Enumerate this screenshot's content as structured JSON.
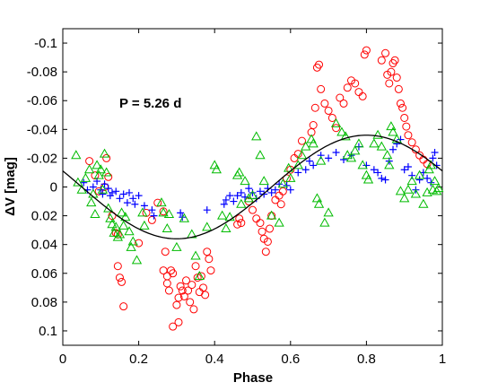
{
  "chart_data": {
    "type": "scatter",
    "xlabel": "Phase",
    "ylabel": "ΔV [mag]",
    "annotation": "P = 5.26 d",
    "xlim": [
      0,
      1
    ],
    "ylim": [
      0.11,
      -0.11
    ],
    "y_axis_inverted": true,
    "grid": false,
    "legend": "none",
    "x_ticks": [
      "0",
      "0.2",
      "0.4",
      "0.6",
      "0.8",
      "1"
    ],
    "x_tick_values": [
      0,
      0.2,
      0.4,
      0.6,
      0.8,
      1
    ],
    "y_ticks": [
      "-0.1",
      "-0.08",
      "-0.06",
      "-0.04",
      "-0.02",
      "0",
      "0.02",
      "0.04",
      "0.06",
      "0.08",
      "0.1"
    ],
    "y_tick_values": [
      -0.1,
      -0.08,
      -0.06,
      -0.04,
      -0.02,
      0,
      0.02,
      0.04,
      0.06,
      0.08,
      0.1
    ],
    "fit_curve": {
      "model": "sinusoid",
      "offset": 0,
      "amplitude": 0.036,
      "phase_of_max_brightness": 0.8,
      "color": "#000000"
    },
    "series": [
      {
        "marker": "circle",
        "color": "#ff0000",
        "points": [
          [
            0.07,
            -0.018
          ],
          [
            0.085,
            -0.008
          ],
          [
            0.095,
            0.003
          ],
          [
            0.11,
            0
          ],
          [
            0.115,
            -0.02
          ],
          [
            0.12,
            -0.007
          ],
          [
            0.13,
            0.02
          ],
          [
            0.14,
            0.032
          ],
          [
            0.145,
            0.033
          ],
          [
            0.145,
            0.055
          ],
          [
            0.15,
            0.063
          ],
          [
            0.155,
            0.066
          ],
          [
            0.16,
            0.083
          ],
          [
            0.2,
            0.039
          ],
          [
            0.22,
            0.018
          ],
          [
            0.235,
            0.023
          ],
          [
            0.25,
            0.011
          ],
          [
            0.265,
            0.017
          ],
          [
            0.265,
            0.058
          ],
          [
            0.27,
            0.045
          ],
          [
            0.275,
            0.062
          ],
          [
            0.275,
            0.067
          ],
          [
            0.28,
            0.072
          ],
          [
            0.285,
            0.058
          ],
          [
            0.29,
            0.06
          ],
          [
            0.3,
            0.082
          ],
          [
            0.305,
            0.077
          ],
          [
            0.31,
            0.069
          ],
          [
            0.315,
            0.072
          ],
          [
            0.32,
            0.076
          ],
          [
            0.325,
            0.065
          ],
          [
            0.33,
            0.072
          ],
          [
            0.335,
            0.08
          ],
          [
            0.34,
            0.068
          ],
          [
            0.345,
            0.085
          ],
          [
            0.35,
            0.055
          ],
          [
            0.355,
            0.063
          ],
          [
            0.36,
            0.073
          ],
          [
            0.365,
            0.062
          ],
          [
            0.37,
            0.07
          ],
          [
            0.375,
            0.075
          ],
          [
            0.38,
            0.045
          ],
          [
            0.385,
            0.05
          ],
          [
            0.39,
            0.058
          ],
          [
            0.305,
            0.094
          ],
          [
            0.29,
            0.097
          ],
          [
            0.46,
            0.026
          ],
          [
            0.465,
            0.022
          ],
          [
            0.47,
            0.025
          ],
          [
            0.49,
            0.01
          ],
          [
            0.5,
            0.016
          ],
          [
            0.51,
            0.022
          ],
          [
            0.52,
            0.025
          ],
          [
            0.525,
            0.031
          ],
          [
            0.53,
            0.036
          ],
          [
            0.535,
            0.045
          ],
          [
            0.54,
            0.038
          ],
          [
            0.545,
            0.029
          ],
          [
            0.55,
            0.02
          ],
          [
            0.56,
            0.009
          ],
          [
            0.57,
            0.006
          ],
          [
            0.575,
            0.012
          ],
          [
            0.58,
            0.003
          ],
          [
            0.59,
            -0.006
          ],
          [
            0.6,
            -0.012
          ],
          [
            0.61,
            -0.02
          ],
          [
            0.62,
            -0.023
          ],
          [
            0.63,
            -0.032
          ],
          [
            0.655,
            -0.038
          ],
          [
            0.66,
            -0.043
          ],
          [
            0.665,
            -0.055
          ],
          [
            0.67,
            -0.083
          ],
          [
            0.675,
            -0.085
          ],
          [
            0.68,
            -0.068
          ],
          [
            0.69,
            -0.058
          ],
          [
            0.7,
            -0.053
          ],
          [
            0.71,
            -0.048
          ],
          [
            0.72,
            -0.041
          ],
          [
            0.73,
            -0.062
          ],
          [
            0.74,
            -0.058
          ],
          [
            0.75,
            -0.069
          ],
          [
            0.76,
            -0.074
          ],
          [
            0.77,
            -0.072
          ],
          [
            0.78,
            -0.066
          ],
          [
            0.79,
            -0.063
          ],
          [
            0.795,
            -0.092
          ],
          [
            0.8,
            -0.095
          ],
          [
            0.84,
            -0.088
          ],
          [
            0.85,
            -0.093
          ],
          [
            0.855,
            -0.078
          ],
          [
            0.86,
            -0.072
          ],
          [
            0.865,
            -0.08
          ],
          [
            0.87,
            -0.086
          ],
          [
            0.875,
            -0.088
          ],
          [
            0.88,
            -0.076
          ],
          [
            0.885,
            -0.068
          ],
          [
            0.89,
            -0.058
          ],
          [
            0.895,
            -0.055
          ],
          [
            0.9,
            -0.048
          ],
          [
            0.905,
            -0.042
          ],
          [
            0.91,
            -0.036
          ],
          [
            0.92,
            -0.031
          ],
          [
            0.93,
            -0.026
          ],
          [
            0.94,
            -0.022
          ],
          [
            0.95,
            -0.019
          ],
          [
            0.96,
            -0.016
          ]
        ]
      },
      {
        "marker": "plus",
        "color": "#0000ff",
        "points": [
          [
            0.055,
            -0.003
          ],
          [
            0.065,
            0.002
          ],
          [
            0.08,
            0
          ],
          [
            0.09,
            -0.004
          ],
          [
            0.1,
            0.002
          ],
          [
            0.105,
            0.005
          ],
          [
            0.11,
            -0.002
          ],
          [
            0.12,
            0.001
          ],
          [
            0.125,
            0.006
          ],
          [
            0.13,
            0.004
          ],
          [
            0.14,
            0.003
          ],
          [
            0.15,
            0.008
          ],
          [
            0.16,
            0.005
          ],
          [
            0.17,
            0.011
          ],
          [
            0.175,
            0.004
          ],
          [
            0.185,
            0.008
          ],
          [
            0.19,
            0.012
          ],
          [
            0.2,
            0.006
          ],
          [
            0.215,
            0.013
          ],
          [
            0.235,
            0.016
          ],
          [
            0.24,
            0.02
          ],
          [
            0.31,
            0.018
          ],
          [
            0.315,
            0.021
          ],
          [
            0.38,
            0.016
          ],
          [
            0.425,
            0.012
          ],
          [
            0.43,
            0.009
          ],
          [
            0.44,
            0.006
          ],
          [
            0.45,
            0.01
          ],
          [
            0.46,
            0.006
          ],
          [
            0.47,
            0.004
          ],
          [
            0.48,
            0.007
          ],
          [
            0.49,
            0.001
          ],
          [
            0.5,
            0.004
          ],
          [
            0.51,
            0.008
          ],
          [
            0.52,
            0.003
          ],
          [
            0.53,
            0.005
          ],
          [
            0.54,
            0.001
          ],
          [
            0.55,
            0.004
          ],
          [
            0.56,
            0.002
          ],
          [
            0.57,
            -0.002
          ],
          [
            0.59,
            -0.001
          ],
          [
            0.6,
            0.002
          ],
          [
            0.62,
            -0.01
          ],
          [
            0.64,
            -0.012
          ],
          [
            0.65,
            -0.018
          ],
          [
            0.66,
            -0.015
          ],
          [
            0.68,
            -0.022
          ],
          [
            0.7,
            -0.02
          ],
          [
            0.72,
            -0.024
          ],
          [
            0.74,
            -0.019
          ],
          [
            0.76,
            -0.022
          ],
          [
            0.78,
            -0.028
          ],
          [
            0.8,
            -0.015
          ],
          [
            0.82,
            -0.012
          ],
          [
            0.83,
            -0.01
          ],
          [
            0.84,
            -0.006
          ],
          [
            0.85,
            -0.005
          ],
          [
            0.86,
            -0.018
          ],
          [
            0.87,
            -0.026
          ],
          [
            0.88,
            -0.03
          ],
          [
            0.89,
            -0.033
          ],
          [
            0.9,
            -0.012
          ],
          [
            0.91,
            -0.014
          ],
          [
            0.92,
            -0.008
          ],
          [
            0.93,
            0.002
          ],
          [
            0.94,
            -0.005
          ],
          [
            0.95,
            -0.01
          ],
          [
            0.96,
            -0.006
          ],
          [
            0.97,
            -0.003
          ],
          [
            0.975,
            -0.02
          ],
          [
            0.98,
            -0.024
          ],
          [
            0.985,
            -0.015
          ]
        ]
      },
      {
        "marker": "triangle",
        "color": "#00bb00",
        "points": [
          [
            0.035,
            -0.022
          ],
          [
            0.04,
            -0.003
          ],
          [
            0.05,
            0.002
          ],
          [
            0.06,
            -0.006
          ],
          [
            0.07,
            -0.012
          ],
          [
            0.075,
            0.011
          ],
          [
            0.08,
            0.005
          ],
          [
            0.085,
            0.019
          ],
          [
            0.09,
            -0.015
          ],
          [
            0.095,
            -0.008
          ],
          [
            0.1,
            -0.012
          ],
          [
            0.105,
            0.002
          ],
          [
            0.11,
            -0.023
          ],
          [
            0.115,
            -0.01
          ],
          [
            0.12,
            0.015
          ],
          [
            0.125,
            0.022
          ],
          [
            0.13,
            0.026
          ],
          [
            0.135,
            0.032
          ],
          [
            0.14,
            0.028
          ],
          [
            0.145,
            0.035
          ],
          [
            0.15,
            0.033
          ],
          [
            0.155,
            0.018
          ],
          [
            0.16,
            0.027
          ],
          [
            0.165,
            0.021
          ],
          [
            0.175,
            0.031
          ],
          [
            0.18,
            0.042
          ],
          [
            0.185,
            0.038
          ],
          [
            0.195,
            0.051
          ],
          [
            0.21,
            0.018
          ],
          [
            0.215,
            0.027
          ],
          [
            0.26,
            0.011
          ],
          [
            0.265,
            0.018
          ],
          [
            0.275,
            0.029
          ],
          [
            0.28,
            0.019
          ],
          [
            0.3,
            0.042
          ],
          [
            0.32,
            0.022
          ],
          [
            0.34,
            0.033
          ],
          [
            0.35,
            0.048
          ],
          [
            0.36,
            0.062
          ],
          [
            0.38,
            0.028
          ],
          [
            0.4,
            -0.015
          ],
          [
            0.405,
            -0.012
          ],
          [
            0.42,
            0.02
          ],
          [
            0.43,
            0.029
          ],
          [
            0.44,
            0.021
          ],
          [
            0.46,
            -0.008
          ],
          [
            0.465,
            -0.01
          ],
          [
            0.47,
            0.012
          ],
          [
            0.48,
            -0.004
          ],
          [
            0.49,
            0.008
          ],
          [
            0.5,
            0.006
          ],
          [
            0.51,
            -0.035
          ],
          [
            0.52,
            -0.022
          ],
          [
            0.53,
            -0.004
          ],
          [
            0.55,
            0.02
          ],
          [
            0.57,
            0.025
          ],
          [
            0.58,
            -0.002
          ],
          [
            0.595,
            -0.013
          ],
          [
            0.6,
            -0.006
          ],
          [
            0.62,
            -0.015
          ],
          [
            0.63,
            -0.022
          ],
          [
            0.64,
            -0.028
          ],
          [
            0.655,
            -0.033
          ],
          [
            0.66,
            -0.03
          ],
          [
            0.68,
            -0.018
          ],
          [
            0.67,
            0.008
          ],
          [
            0.675,
            0.012
          ],
          [
            0.69,
            0.025
          ],
          [
            0.7,
            0.018
          ],
          [
            0.72,
            -0.044
          ],
          [
            0.735,
            -0.038
          ],
          [
            0.745,
            -0.035
          ],
          [
            0.75,
            -0.022
          ],
          [
            0.76,
            -0.02
          ],
          [
            0.77,
            -0.025
          ],
          [
            0.78,
            -0.03
          ],
          [
            0.79,
            -0.015
          ],
          [
            0.8,
            -0.008
          ],
          [
            0.805,
            -0.005
          ],
          [
            0.82,
            -0.03
          ],
          [
            0.83,
            -0.036
          ],
          [
            0.84,
            -0.028
          ],
          [
            0.855,
            -0.022
          ],
          [
            0.86,
            -0.015
          ],
          [
            0.865,
            -0.042
          ],
          [
            0.87,
            -0.038
          ],
          [
            0.88,
            -0.033
          ],
          [
            0.89,
            0.003
          ],
          [
            0.9,
            0.008
          ],
          [
            0.91,
            0.002
          ],
          [
            0.92,
            -0.004
          ],
          [
            0.93,
            0.005
          ],
          [
            0.94,
            -0.008
          ],
          [
            0.95,
            0.012
          ],
          [
            0.96,
            0.004
          ],
          [
            0.965,
            -0.012
          ],
          [
            0.97,
            -0.015
          ],
          [
            0.975,
            0.002
          ],
          [
            0.98,
            -0.004
          ],
          [
            0.985,
            0.003
          ],
          [
            0.99,
            0.001
          ]
        ]
      }
    ]
  }
}
